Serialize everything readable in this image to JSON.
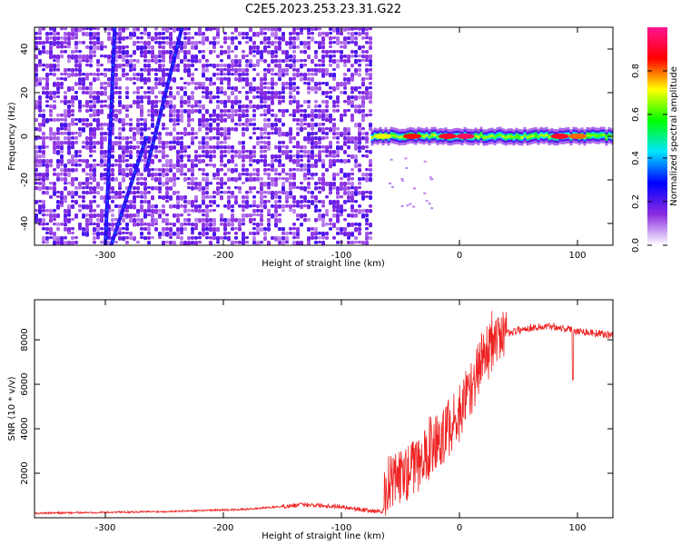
{
  "title": "C2E5.2023.253.23.31.G22",
  "chart_data": [
    {
      "type": "heatmap",
      "name": "spectrogram",
      "xlabel": "Height of straight line (km)",
      "ylabel": "Frequency (Hz)",
      "xlim": [
        -360,
        130
      ],
      "ylim": [
        -50,
        50
      ],
      "xticks": [
        -300,
        -200,
        -100,
        0,
        100
      ],
      "yticks": [
        -40,
        -20,
        0,
        20,
        40
      ],
      "colorbar": {
        "label": "Normalized spectral amplitude",
        "range": [
          0,
          1
        ],
        "ticks": [
          0.0,
          0.2,
          0.4,
          0.6,
          0.8
        ],
        "colors": [
          "#ffffff",
          "#8a2be2",
          "#0000ff",
          "#00e5ff",
          "#00ff00",
          "#ffff00",
          "#ff0000",
          "#ff1493"
        ]
      },
      "noise_region_x": [
        -360,
        -75
      ],
      "signal_line": {
        "x_start": -75,
        "x_end": 130,
        "frequency": 0,
        "peaks": [
          {
            "x": -65,
            "amplitude": 0.7
          },
          {
            "x": -40,
            "amplitude": 0.85
          },
          {
            "x": -10,
            "amplitude": 0.9
          },
          {
            "x": 5,
            "amplitude": 0.95
          },
          {
            "x": 85,
            "amplitude": 0.9
          },
          {
            "x": 100,
            "amplitude": 0.8
          }
        ]
      },
      "streaks": [
        {
          "x_top": -292,
          "x_bottom": -300,
          "y_top": 50,
          "y_bottom": -50
        },
        {
          "x_top": -235,
          "x_bottom": -265,
          "y_top": 50,
          "y_bottom": -15
        },
        {
          "x_top": -265,
          "x_bottom": -295,
          "y_top": 0,
          "y_bottom": -50
        }
      ]
    },
    {
      "type": "line",
      "name": "snr",
      "xlabel": "Height of straight line (km)",
      "ylabel": "SNR (10 * v/v)",
      "xlim": [
        -360,
        130
      ],
      "ylim": [
        0,
        9800
      ],
      "xticks": [
        -300,
        -200,
        -100,
        0,
        100
      ],
      "yticks": [
        2000,
        4000,
        6000,
        8000
      ],
      "color": "#ee2222",
      "profile": [
        {
          "x": -360,
          "y": 200
        },
        {
          "x": -250,
          "y": 280
        },
        {
          "x": -180,
          "y": 380
        },
        {
          "x": -130,
          "y": 600
        },
        {
          "x": -100,
          "y": 500
        },
        {
          "x": -75,
          "y": 300
        },
        {
          "x": -64,
          "y": 300
        },
        {
          "x": -60,
          "y": 1500
        },
        {
          "x": -50,
          "y": 1800
        },
        {
          "x": -40,
          "y": 2200
        },
        {
          "x": -30,
          "y": 2700
        },
        {
          "x": -20,
          "y": 3300
        },
        {
          "x": -10,
          "y": 3900
        },
        {
          "x": 0,
          "y": 4700
        },
        {
          "x": 10,
          "y": 5900
        },
        {
          "x": 20,
          "y": 7200
        },
        {
          "x": 30,
          "y": 7900
        },
        {
          "x": 40,
          "y": 8300
        },
        {
          "x": 60,
          "y": 8550
        },
        {
          "x": 80,
          "y": 8600
        },
        {
          "x": 100,
          "y": 8400
        },
        {
          "x": 130,
          "y": 8200
        }
      ],
      "dips": [
        {
          "x": 96,
          "y": 6200
        }
      ]
    }
  ]
}
